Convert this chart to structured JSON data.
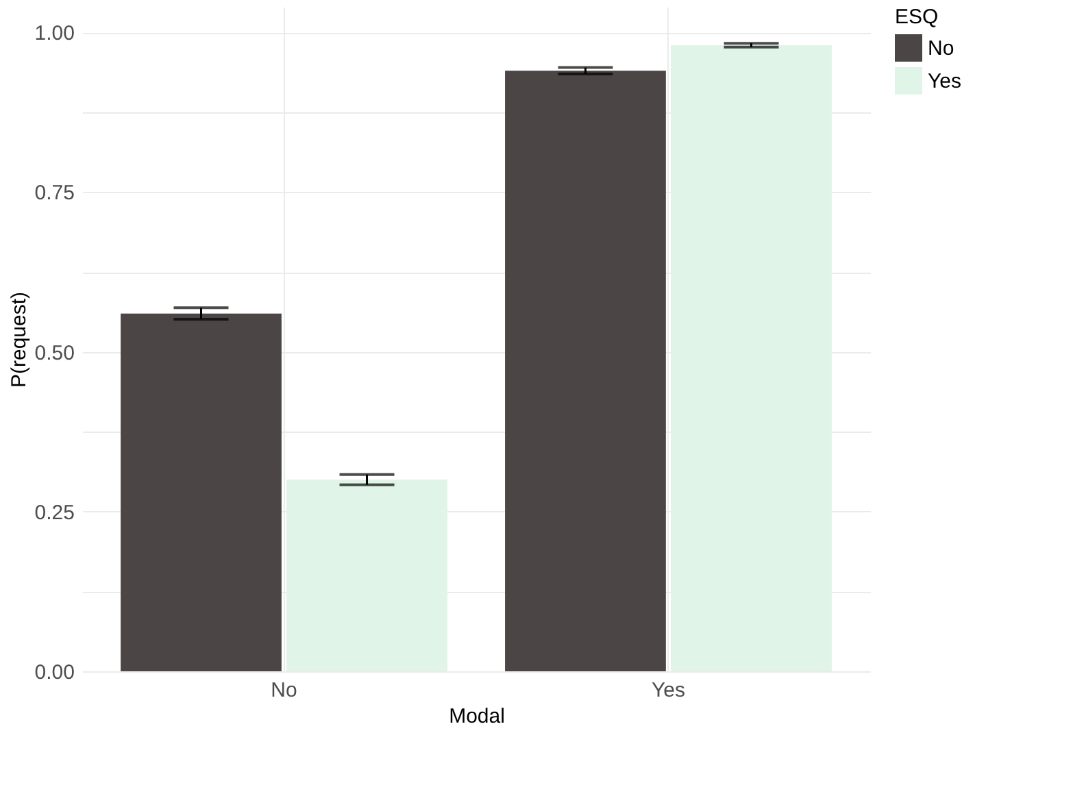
{
  "chart_data": {
    "type": "bar",
    "xlabel": "Modal",
    "ylabel": "P(request)",
    "legend_title": "ESQ",
    "categories": [
      "No",
      "Yes"
    ],
    "series": [
      {
        "name": "No",
        "color": "#4b4545",
        "values": [
          0.56,
          0.94
        ],
        "errors": [
          0.009,
          0.005
        ]
      },
      {
        "name": "Yes",
        "color": "#e1f4e8",
        "values": [
          0.3,
          0.98
        ],
        "errors": [
          0.008,
          0.003
        ]
      }
    ],
    "ylim": [
      0,
      1.04
    ],
    "yticks": [
      {
        "value": 0,
        "label": "0.00"
      },
      {
        "value": 0.125,
        "label": null
      },
      {
        "value": 0.25,
        "label": "0.25"
      },
      {
        "value": 0.375,
        "label": null
      },
      {
        "value": 0.5,
        "label": "0.50"
      },
      {
        "value": 0.625,
        "label": null
      },
      {
        "value": 0.75,
        "label": "0.75"
      },
      {
        "value": 0.875,
        "label": null
      },
      {
        "value": 1,
        "label": "1.00"
      }
    ],
    "grid": true,
    "legend": "right"
  }
}
